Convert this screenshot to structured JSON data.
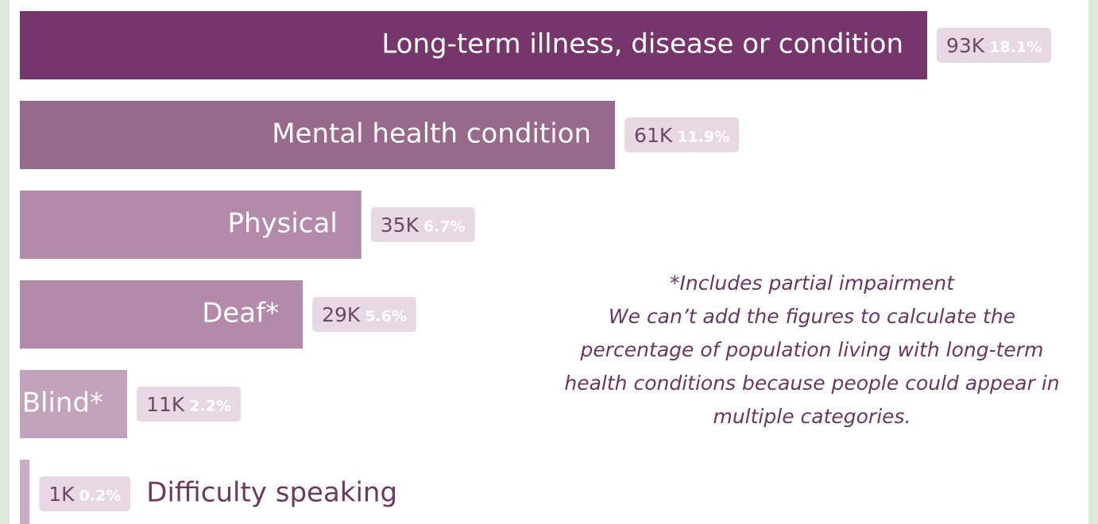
{
  "chart_data": {
    "type": "bar",
    "orientation": "horizontal",
    "categories": [
      "Long-term illness, disease or condition",
      "Mental health condition",
      "Physical",
      "Deaf*",
      "Blind*",
      "Difficulty speaking"
    ],
    "values": [
      93000,
      61000,
      35000,
      29000,
      11000,
      1000
    ],
    "value_labels": [
      "93K",
      "61K",
      "35K",
      "29K",
      "11K",
      "1K"
    ],
    "shares": [
      18.1,
      11.9,
      6.7,
      5.6,
      2.2,
      0.2
    ],
    "share_labels": [
      "18.1%",
      "11.9%",
      "6.7%",
      "5.6%",
      "2.2%",
      "0.2%"
    ],
    "colors": [
      "#76366b",
      "#976a8c",
      "#b48aaa",
      "#b48aaa",
      "#c3a2bb",
      "#c9adc2"
    ],
    "annotation": [
      "*Includes partial impairment",
      "We can’t add the figures to calculate the",
      "percentage of population living with long-term",
      "health conditions because people could appear in",
      "multiple categories."
    ]
  }
}
